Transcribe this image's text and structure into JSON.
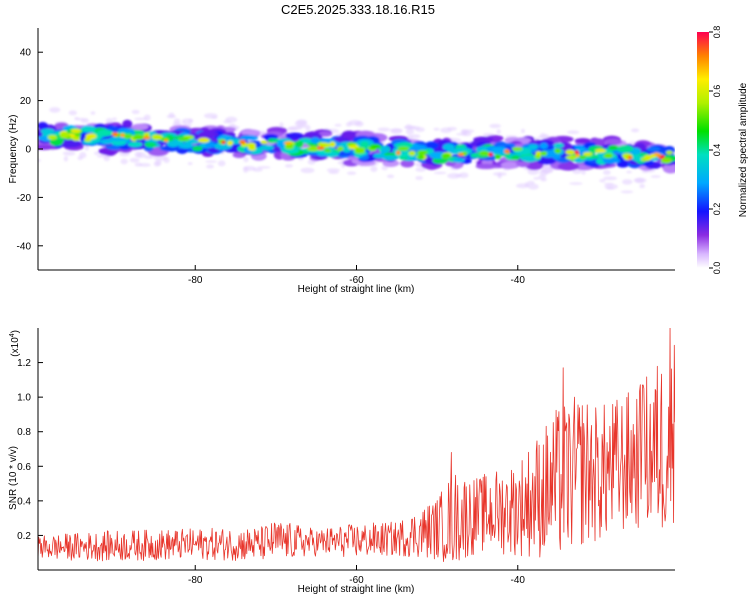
{
  "title": "C2E5.2025.333.18.16.R15",
  "chart_data": [
    {
      "type": "heatmap",
      "title": "C2E5.2025.333.18.16.R15",
      "xlabel": "Height of straight line (km)",
      "ylabel": "Frequency (Hz)",
      "xlim": [
        -99.5,
        -20.5
      ],
      "ylim": [
        -50,
        50
      ],
      "xticks": [
        -80,
        -60,
        -40
      ],
      "xtick_labels": [
        "-80",
        "-60",
        "-40"
      ],
      "yticks": [
        40,
        20,
        0,
        -20,
        -40
      ],
      "ytick_labels": [
        "40",
        "20",
        "0",
        "-20",
        "-40"
      ],
      "ridge": {
        "x": [
          -99,
          -90,
          -80,
          -70,
          -60,
          -50,
          -40,
          -30,
          -21
        ],
        "y": [
          6,
          5,
          3,
          2,
          0,
          -2,
          -1,
          -2,
          -3
        ]
      },
      "colorbar": {
        "label": "Normalized spectral amplitude",
        "range": [
          0,
          0.8
        ],
        "ticks": [
          0,
          0.2,
          0.4,
          0.6,
          0.8
        ],
        "tick_labels": [
          "0.0",
          "0.2",
          "0.4",
          "0.6",
          "0.8"
        ]
      }
    },
    {
      "type": "line",
      "xlabel": "Height of straight line (km)",
      "ylabel": "SNR (10 * v/v)",
      "multiplier_label": "(x10",
      "multiplier_exp": "4",
      "multiplier_close": ")",
      "xlim": [
        -99.5,
        -20.5
      ],
      "ylim": [
        0,
        1.4
      ],
      "xticks": [
        -80,
        -60,
        -40
      ],
      "xtick_labels": [
        "-80",
        "-60",
        "-40"
      ],
      "yticks": [
        0.2,
        0.4,
        0.6,
        0.8,
        1.0,
        1.2
      ],
      "ytick_labels": [
        "0.2",
        "0.4",
        "0.6",
        "0.8",
        "1.0",
        "1.2"
      ],
      "series_color": "#e8352b",
      "envelope": {
        "x": [
          -99.5,
          -90,
          -80,
          -72,
          -70,
          -65,
          -60,
          -55,
          -50,
          -48,
          -45,
          -40,
          -35,
          -32,
          -30,
          -25,
          -22,
          -20.5
        ],
        "mean": [
          0.13,
          0.14,
          0.15,
          0.15,
          0.17,
          0.16,
          0.17,
          0.18,
          0.24,
          0.3,
          0.32,
          0.36,
          0.5,
          0.58,
          0.55,
          0.65,
          0.72,
          0.78
        ],
        "amp": [
          0.07,
          0.09,
          0.09,
          0.1,
          0.12,
          0.08,
          0.1,
          0.1,
          0.18,
          0.28,
          0.22,
          0.28,
          0.45,
          0.45,
          0.4,
          0.42,
          0.55,
          0.5
        ]
      },
      "peaks": [
        {
          "x": -48.2,
          "y": 0.68
        },
        {
          "x": -34.4,
          "y": 1.17
        },
        {
          "x": -24.5,
          "y": 1.07
        },
        {
          "x": -21.1,
          "y": 1.42
        },
        {
          "x": -20.6,
          "y": 1.3
        }
      ]
    }
  ]
}
